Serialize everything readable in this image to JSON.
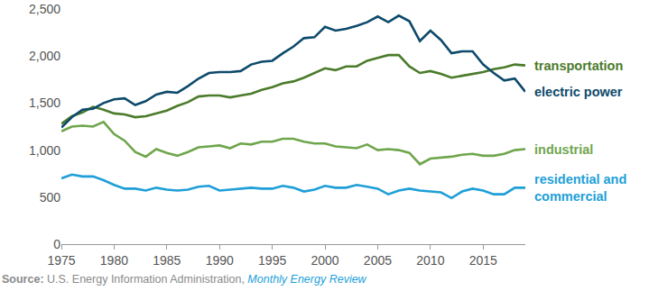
{
  "chart_data": {
    "type": "line",
    "x": [
      1975,
      1976,
      1977,
      1978,
      1979,
      1980,
      1981,
      1982,
      1983,
      1984,
      1985,
      1986,
      1987,
      1988,
      1989,
      1990,
      1991,
      1992,
      1993,
      1994,
      1995,
      1996,
      1997,
      1998,
      1999,
      2000,
      2001,
      2002,
      2003,
      2004,
      2005,
      2006,
      2007,
      2008,
      2009,
      2010,
      2011,
      2012,
      2013,
      2014,
      2015,
      2016,
      2017,
      2018,
      2019
    ],
    "series": [
      {
        "name": "transportation",
        "color": "#4b7b2b",
        "values": [
          1280,
          1360,
          1400,
          1460,
          1430,
          1390,
          1380,
          1350,
          1360,
          1390,
          1420,
          1470,
          1510,
          1570,
          1580,
          1580,
          1560,
          1580,
          1600,
          1640,
          1670,
          1710,
          1730,
          1770,
          1820,
          1870,
          1850,
          1890,
          1890,
          1950,
          1980,
          2010,
          2010,
          1890,
          1820,
          1840,
          1810,
          1770,
          1790,
          1810,
          1830,
          1860,
          1880,
          1910,
          1900
        ]
      },
      {
        "name": "electric power",
        "color": "#0d4a6b",
        "values": [
          1240,
          1350,
          1430,
          1440,
          1500,
          1540,
          1550,
          1480,
          1520,
          1590,
          1620,
          1610,
          1680,
          1760,
          1820,
          1830,
          1830,
          1840,
          1910,
          1940,
          1950,
          2030,
          2100,
          2190,
          2200,
          2310,
          2270,
          2290,
          2320,
          2360,
          2420,
          2360,
          2430,
          2370,
          2160,
          2270,
          2170,
          2030,
          2050,
          2050,
          1910,
          1820,
          1740,
          1760,
          1620
        ]
      },
      {
        "name": "industrial",
        "color": "#6fa64d",
        "values": [
          1200,
          1250,
          1260,
          1250,
          1300,
          1170,
          1100,
          980,
          930,
          1010,
          970,
          940,
          980,
          1030,
          1040,
          1050,
          1020,
          1070,
          1060,
          1090,
          1090,
          1120,
          1120,
          1090,
          1070,
          1070,
          1040,
          1030,
          1020,
          1060,
          1000,
          1010,
          1000,
          970,
          850,
          910,
          920,
          930,
          950,
          960,
          940,
          940,
          960,
          1000,
          1010
        ]
      },
      {
        "name": "residential and commercial",
        "color": "#1e9fd8",
        "values": [
          700,
          740,
          720,
          720,
          680,
          630,
          590,
          590,
          570,
          600,
          580,
          570,
          580,
          610,
          620,
          570,
          580,
          590,
          600,
          590,
          590,
          620,
          600,
          560,
          580,
          620,
          600,
          600,
          630,
          610,
          590,
          530,
          570,
          590,
          570,
          560,
          550,
          490,
          560,
          590,
          570,
          530,
          530,
          600,
          600
        ]
      }
    ],
    "xlim": [
      1975,
      2019
    ],
    "xticks": [
      1975,
      1980,
      1985,
      1990,
      1995,
      2000,
      2005,
      2010,
      2015
    ],
    "ylim": [
      0,
      2500
    ],
    "yticks": [
      0,
      500,
      {
        "value": 1000,
        "label": "1,000"
      },
      {
        "value": 1500,
        "label": "1,500"
      },
      {
        "value": 2000,
        "label": "2,000"
      },
      {
        "value": 2500,
        "label": "2,500"
      }
    ],
    "grid": false,
    "source": [
      "Source:",
      "U.S. Energy Information Administration,",
      "Monthly Energy Review"
    ]
  }
}
